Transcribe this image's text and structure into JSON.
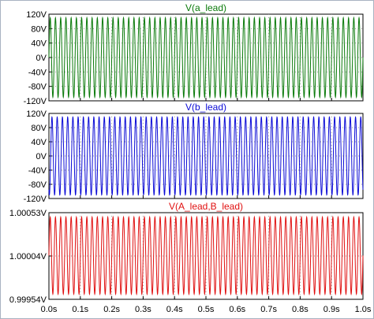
{
  "chart_data": [
    {
      "type": "line",
      "title": "V(a_lead)",
      "color": "#0a7a0a",
      "grid": true,
      "x_range": [
        0,
        1.0
      ],
      "ylim": [
        -120,
        120
      ],
      "y_ticks": [
        "120V",
        "80V",
        "40V",
        "0V",
        "-40V",
        "-80V",
        "-120V"
      ],
      "series": [
        {
          "name": "V(a_lead)",
          "waveform": "sine",
          "amplitude": 110,
          "offset": 0,
          "frequency_hz": 60,
          "phase_deg": 0
        }
      ]
    },
    {
      "type": "line",
      "title": "V(b_lead)",
      "color": "#0b0bd6",
      "grid": true,
      "x_range": [
        0,
        1.0
      ],
      "ylim": [
        -120,
        120
      ],
      "y_ticks": [
        "120V",
        "80V",
        "40V",
        "0V",
        "-40V",
        "-80V",
        "-120V"
      ],
      "series": [
        {
          "name": "V(b_lead)",
          "waveform": "sine",
          "amplitude": 110,
          "offset": 0,
          "frequency_hz": 60,
          "phase_deg": -120
        }
      ]
    },
    {
      "type": "line",
      "title": "V(A_lead,B_lead)",
      "color": "#e01010",
      "grid": true,
      "x_range": [
        0,
        1.0
      ],
      "ylim": [
        0.99954,
        1.00053
      ],
      "y_ticks": [
        "1.00053V",
        "1.00004V",
        "0.99954V"
      ],
      "series": [
        {
          "name": "V(A_lead,B_lead)",
          "waveform": "sine",
          "amplitude": 0.00044,
          "offset": 1.00004,
          "frequency_hz": 60,
          "phase_deg": 0
        }
      ]
    }
  ],
  "x_axis": {
    "ticks": [
      "0.0s",
      "0.1s",
      "0.2s",
      "0.3s",
      "0.4s",
      "0.5s",
      "0.6s",
      "0.7s",
      "0.8s",
      "0.9s",
      "1.0s"
    ]
  }
}
